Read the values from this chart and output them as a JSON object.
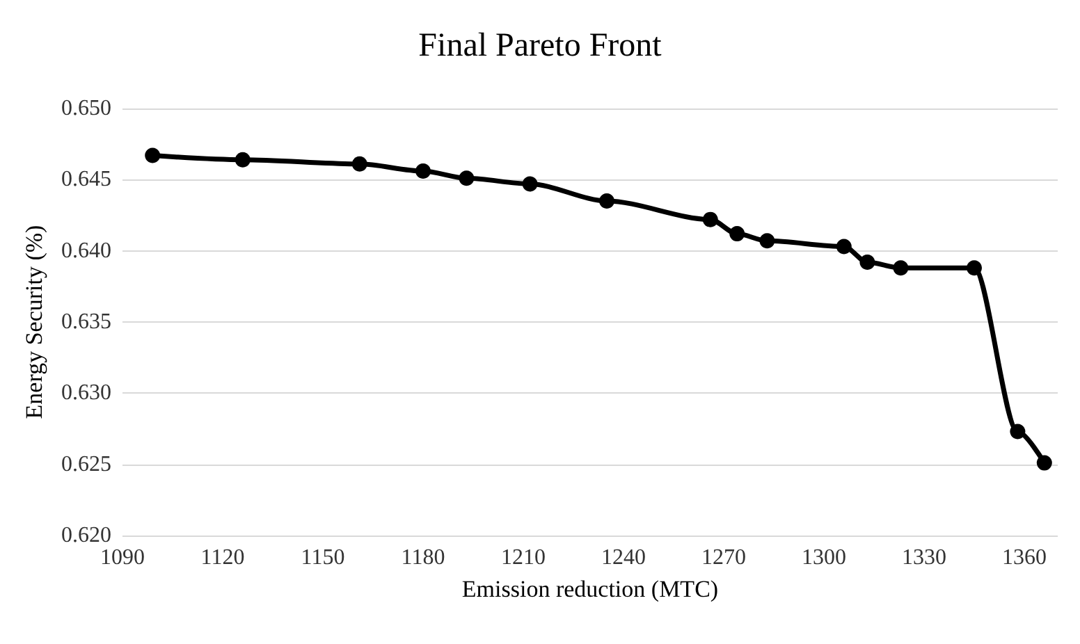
{
  "chart_data": {
    "type": "line",
    "title": "Final Pareto Front",
    "xlabel": "Emission reduction (MTC)",
    "ylabel": "Energy Security (%)",
    "x": [
      1099,
      1126,
      1161,
      1180,
      1193,
      1212,
      1235,
      1266,
      1274,
      1283,
      1306,
      1313,
      1323,
      1345,
      1358,
      1366
    ],
    "series": [
      {
        "color": "#000000",
        "values": [
          0.6467,
          0.6464,
          0.6461,
          0.6456,
          0.6451,
          0.6447,
          0.6435,
          0.6422,
          0.6412,
          0.6407,
          0.6403,
          0.6392,
          0.6388,
          0.6388,
          0.6273,
          0.6251
        ]
      }
    ],
    "xlim": [
      1090,
      1370
    ],
    "xticks": [
      1090,
      1120,
      1150,
      1180,
      1210,
      1240,
      1270,
      1300,
      1330,
      1360
    ],
    "ylim": [
      0.62,
      0.65
    ],
    "yticks": [
      {
        "value": 0.62,
        "label": "0.620"
      },
      {
        "value": 0.625,
        "label": "0.625"
      },
      {
        "value": 0.63,
        "label": "0.630"
      },
      {
        "value": 0.635,
        "label": "0.635"
      },
      {
        "value": 0.64,
        "label": "0.640"
      },
      {
        "value": 0.645,
        "label": "0.645"
      },
      {
        "value": 0.65,
        "label": "0.650"
      }
    ],
    "grid": "y",
    "marker": "circle",
    "line_style": "solid"
  }
}
